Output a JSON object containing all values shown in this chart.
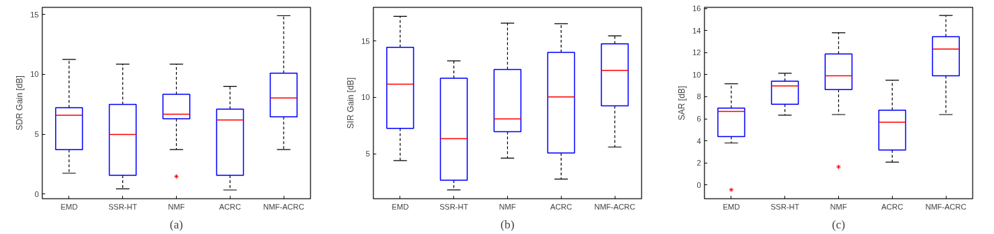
{
  "chart_data": [
    {
      "type": "box",
      "ylabel": "SDR Gain [dB]",
      "annotations": [
        "(a)"
      ],
      "categories": [
        "EMD",
        "SSR-HT",
        "NMF",
        "ACRC",
        "NMF-ACRC"
      ],
      "ylim": [
        -0.4,
        15.6
      ],
      "yticks": [
        0,
        5,
        10,
        15
      ],
      "grid": false,
      "series": [
        {
          "color": "#0000ff",
          "boxes": [
            {
              "low": 1.73,
              "q1": 3.7,
              "median": 6.58,
              "q3": 7.2,
              "high": 11.24
            },
            {
              "low": 0.43,
              "q1": 1.55,
              "median": 4.97,
              "q3": 7.48,
              "high": 10.85
            },
            {
              "low": 3.71,
              "q1": 6.29,
              "median": 6.66,
              "q3": 8.33,
              "high": 10.85,
              "outliers": [
                1.46
              ]
            },
            {
              "low": 0.33,
              "q1": 1.55,
              "median": 6.19,
              "q3": 7.09,
              "high": 8.99
            },
            {
              "low": 3.71,
              "q1": 6.45,
              "median": 8.02,
              "q3": 10.1,
              "high": 14.9
            }
          ]
        }
      ]
    },
    {
      "type": "box",
      "ylabel": "SIR Gain [dB]",
      "annotations": [
        "(b)"
      ],
      "categories": [
        "EMD",
        "SSR-HT",
        "NMF",
        "ACRC",
        "NMF-ACRC"
      ],
      "ylim": [
        1.0,
        18.0
      ],
      "yticks": [
        5,
        10,
        15
      ],
      "grid": false,
      "series": [
        {
          "color": "#0000ff",
          "boxes": [
            {
              "low": 4.39,
              "q1": 7.25,
              "median": 11.17,
              "q3": 14.45,
              "high": 17.2
            },
            {
              "low": 1.78,
              "q1": 2.64,
              "median": 6.33,
              "q3": 11.7,
              "high": 13.25
            },
            {
              "low": 4.61,
              "q1": 6.95,
              "median": 8.09,
              "q3": 12.48,
              "high": 16.6
            },
            {
              "low": 2.75,
              "q1": 5.07,
              "median": 10.04,
              "q3": 14.0,
              "high": 16.55
            },
            {
              "low": 5.59,
              "q1": 9.25,
              "median": 12.4,
              "q3": 14.76,
              "high": 15.46
            }
          ]
        }
      ]
    },
    {
      "type": "box",
      "ylabel": "SAR [dB]",
      "annotations": [
        "(c)"
      ],
      "categories": [
        "EMD",
        "SSR-HT",
        "NMF",
        "ACRC",
        "NMF-ACRC"
      ],
      "ylim": [
        -1.25,
        16.1
      ],
      "yticks": [
        0,
        2,
        4,
        6,
        8,
        10,
        12,
        14,
        16
      ],
      "grid": false,
      "series": [
        {
          "color": "#0000ff",
          "boxes": [
            {
              "low": 3.8,
              "q1": 4.38,
              "median": 6.67,
              "q3": 6.96,
              "high": 9.18,
              "outliers": [
                -0.44
              ]
            },
            {
              "low": 6.33,
              "q1": 7.31,
              "median": 8.98,
              "q3": 9.4,
              "high": 10.13
            },
            {
              "low": 6.38,
              "q1": 8.64,
              "median": 9.89,
              "q3": 11.87,
              "high": 13.8,
              "outliers": [
                1.64
              ]
            },
            {
              "low": 2.07,
              "q1": 3.16,
              "median": 5.69,
              "q3": 6.78,
              "high": 9.49
            },
            {
              "low": 6.38,
              "q1": 9.89,
              "median": 12.31,
              "q3": 13.44,
              "high": 15.36
            }
          ]
        }
      ]
    }
  ]
}
